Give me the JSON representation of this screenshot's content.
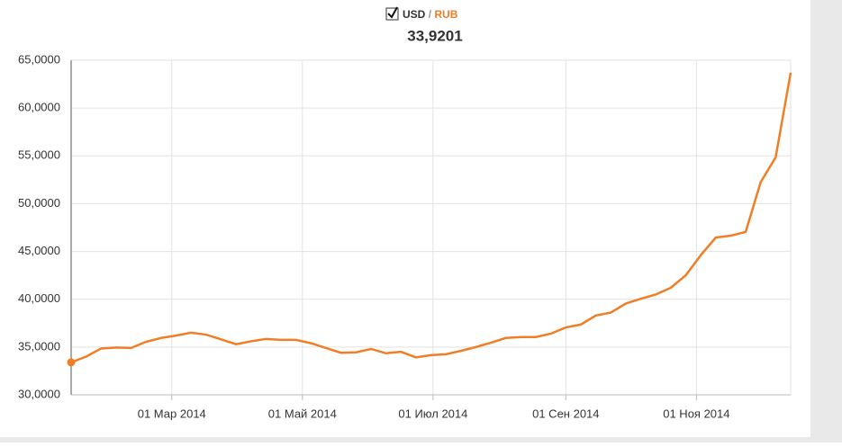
{
  "chart_data": {
    "type": "line",
    "legend_parts": [
      "USD",
      "/",
      "RUB"
    ],
    "hover_label": "33,9201",
    "series": [
      {
        "name": "USD / RUB",
        "color": "#f07e26",
        "x": [
          "2014-01-13",
          "2014-01-20",
          "2014-01-27",
          "2014-02-03",
          "2014-02-10",
          "2014-02-17",
          "2014-02-24",
          "2014-03-03",
          "2014-03-10",
          "2014-03-17",
          "2014-03-24",
          "2014-03-31",
          "2014-04-07",
          "2014-04-14",
          "2014-04-21",
          "2014-04-28",
          "2014-05-05",
          "2014-05-12",
          "2014-05-19",
          "2014-05-26",
          "2014-06-02",
          "2014-06-09",
          "2014-06-16",
          "2014-06-23",
          "2014-06-30",
          "2014-07-07",
          "2014-07-14",
          "2014-07-21",
          "2014-07-28",
          "2014-08-04",
          "2014-08-11",
          "2014-08-18",
          "2014-08-25",
          "2014-09-01",
          "2014-09-08",
          "2014-09-15",
          "2014-09-22",
          "2014-09-29",
          "2014-10-06",
          "2014-10-13",
          "2014-10-20",
          "2014-10-27",
          "2014-11-03",
          "2014-11-10",
          "2014-11-17",
          "2014-11-24",
          "2014-12-01",
          "2014-12-08",
          "2014-12-15"
        ],
        "values": [
          33.4,
          34.0,
          34.85,
          34.95,
          34.9,
          35.55,
          35.95,
          36.2,
          36.5,
          36.3,
          35.8,
          35.3,
          35.6,
          35.85,
          35.75,
          35.75,
          35.4,
          34.9,
          34.4,
          34.45,
          34.8,
          34.35,
          34.5,
          33.9201,
          34.15,
          34.25,
          34.6,
          35.0,
          35.45,
          35.95,
          36.05,
          36.05,
          36.4,
          37.05,
          37.35,
          38.3,
          38.6,
          39.55,
          40.05,
          40.5,
          41.2,
          42.5,
          44.6,
          46.45,
          46.65,
          47.05,
          52.25,
          54.85,
          63.7
        ]
      }
    ],
    "xlim": [
      "2014-01-13",
      "2014-12-15"
    ],
    "xticks": [
      {
        "value": "2014-03-01",
        "label": "01 Мар 2014"
      },
      {
        "value": "2014-05-01",
        "label": "01 Май 2014"
      },
      {
        "value": "2014-07-01",
        "label": "01 Июл 2014"
      },
      {
        "value": "2014-09-01",
        "label": "01 Сен 2014"
      },
      {
        "value": "2014-11-01",
        "label": "01 Ноя 2014"
      }
    ],
    "ylim": [
      30,
      65
    ],
    "yticks": [
      {
        "value": 30,
        "label": "30,0000"
      },
      {
        "value": 35,
        "label": "35,0000"
      },
      {
        "value": 40,
        "label": "40,0000"
      },
      {
        "value": 45,
        "label": "45,0000"
      },
      {
        "value": 50,
        "label": "50,0000"
      },
      {
        "value": 55,
        "label": "55,0000"
      },
      {
        "value": 60,
        "label": "60,0000"
      },
      {
        "value": 65,
        "label": "65,0000"
      }
    ],
    "grid": true
  }
}
